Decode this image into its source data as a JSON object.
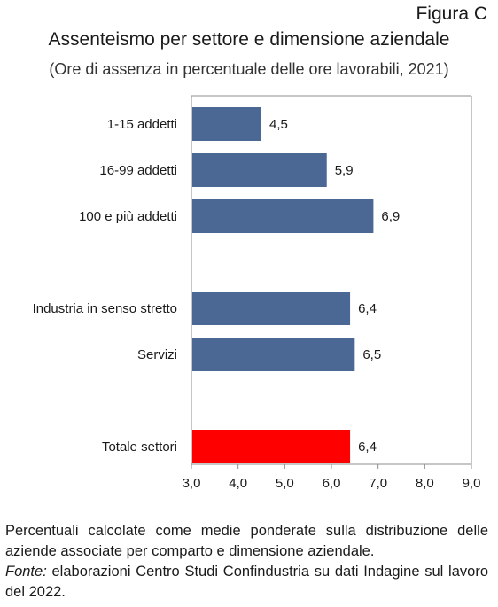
{
  "figure_label": "Figura C",
  "chart_data": {
    "type": "bar",
    "orientation": "horizontal",
    "title": "Assenteismo per settore e dimensione aziendale",
    "subtitle": "(Ore di assenza in percentuale delle ore lavorabili, 2021)",
    "categories": [
      "1-15 addetti",
      "16-99 addetti",
      "100 e più addetti",
      "Industria in senso stretto",
      "Servizi",
      "Totale settori"
    ],
    "values": [
      4.5,
      5.9,
      6.9,
      6.4,
      6.5,
      6.4
    ],
    "value_labels": [
      "4,5",
      "5,9",
      "6,9",
      "6,4",
      "6,5",
      "6,4"
    ],
    "groups": [
      [
        0,
        1,
        2
      ],
      [
        3,
        4
      ],
      [
        5
      ]
    ],
    "colors": [
      "#4a6893",
      "#4a6893",
      "#4a6893",
      "#4a6893",
      "#4a6893",
      "#ff0000"
    ],
    "xlim": [
      3.0,
      9.0
    ],
    "xticks": [
      "3,0",
      "4,0",
      "5,0",
      "6,0",
      "7,0",
      "8,0",
      "9,0"
    ],
    "grid": false
  },
  "note": {
    "text": "Percentuali calcolate come medie ponderate sulla distribuzione delle aziende associate per comparto e dimensione aziendale.",
    "source_label": "Fonte:",
    "source_text": " elaborazioni Centro Studi Confindustria su dati Indagine sul lavoro del 2022."
  }
}
